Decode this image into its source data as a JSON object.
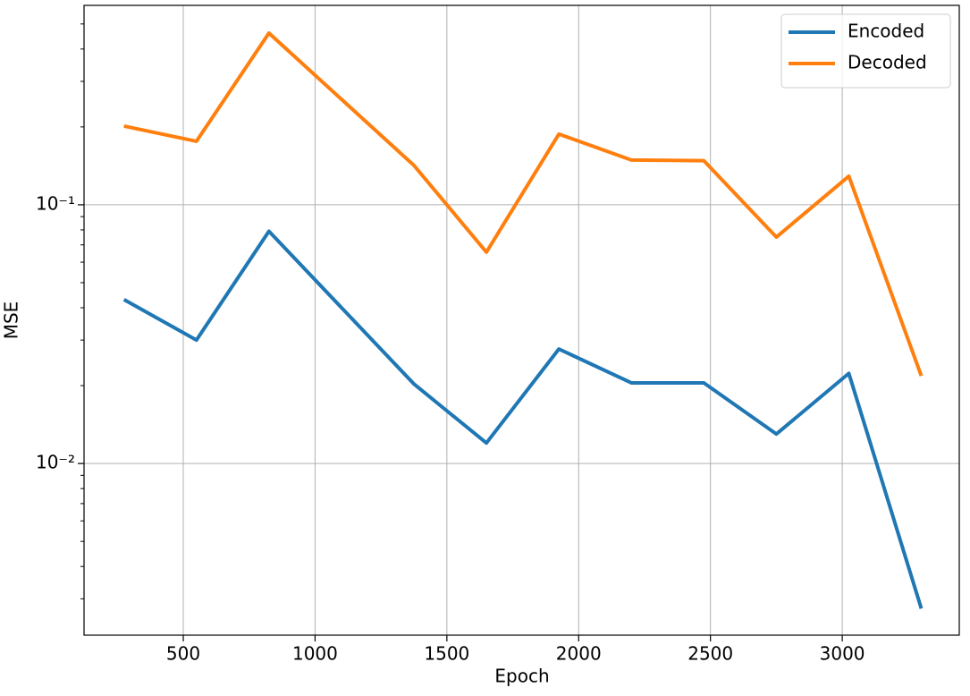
{
  "chart_data": {
    "type": "line",
    "x_label": "Epoch",
    "y_label": "MSE",
    "x": [
      275,
      550,
      825,
      1375,
      1650,
      1925,
      2200,
      2475,
      2750,
      3025,
      3300
    ],
    "series": [
      {
        "name": "Encoded",
        "color": "#1f77b4",
        "values": [
          0.043,
          0.03,
          0.079,
          0.0203,
          0.012,
          0.0277,
          0.0205,
          0.0205,
          0.013,
          0.0223,
          0.00275
        ]
      },
      {
        "name": "Decoded",
        "color": "#ff7f0e",
        "values": [
          0.2015,
          0.176,
          0.461,
          0.142,
          0.0656,
          0.1876,
          0.149,
          0.148,
          0.075,
          0.129,
          0.0218
        ]
      }
    ],
    "xlim": [
      123.5,
      3444
    ],
    "xticks": [
      500,
      1000,
      1500,
      2000,
      2500,
      3000
    ],
    "ylim": [
      0.00217,
      0.59
    ],
    "ylog": true,
    "yticks": [
      {
        "value": 0.01,
        "label": "10⁻²"
      },
      {
        "value": 0.1,
        "label": "10⁻¹"
      }
    ],
    "yminorticks": [
      0.003,
      0.004,
      0.005,
      0.006,
      0.007,
      0.008,
      0.009,
      0.02,
      0.03,
      0.04,
      0.05,
      0.06,
      0.07,
      0.08,
      0.09,
      0.2,
      0.3,
      0.4,
      0.5
    ],
    "grid": true,
    "legend": "upper-right"
  }
}
